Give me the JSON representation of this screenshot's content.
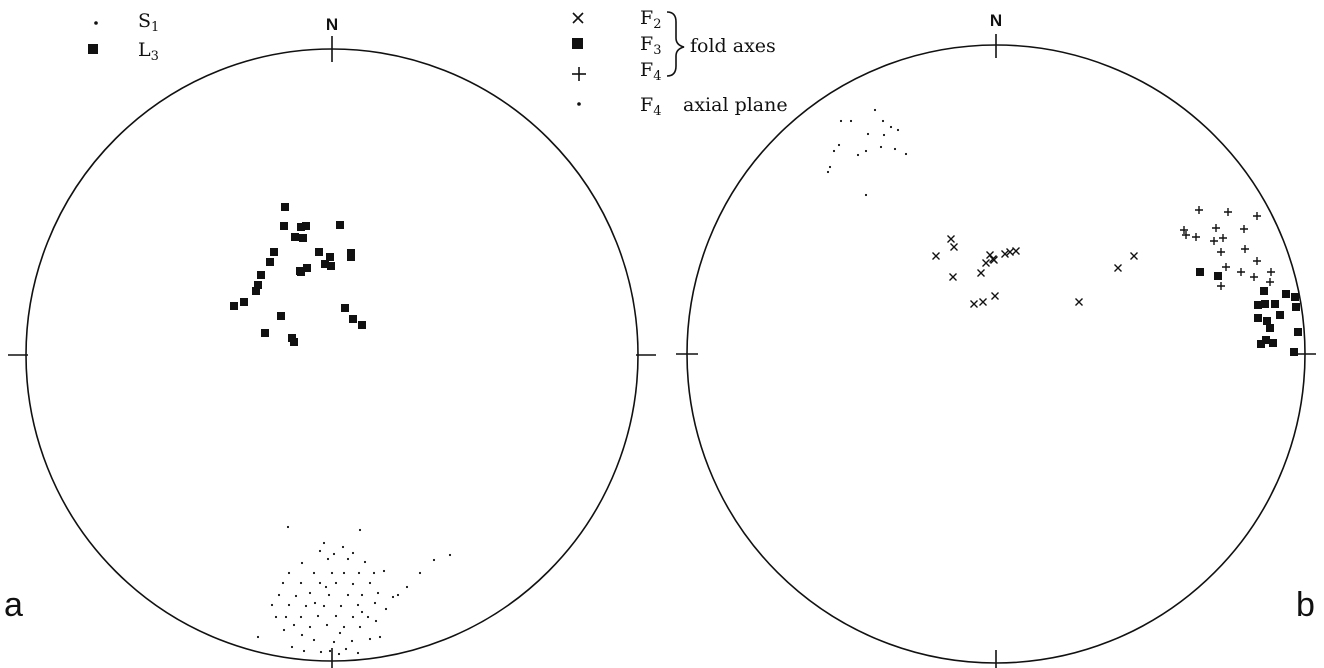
{
  "panels": [
    {
      "id": "a",
      "letter": "a",
      "north_label": "N",
      "legend": [
        {
          "symbol": "dot",
          "label": "S",
          "sub": "1"
        },
        {
          "symbol": "square",
          "label": "L",
          "sub": "3"
        }
      ],
      "points": {
        "squares": [
          [
            -47,
            -148
          ],
          [
            -48,
            -129
          ],
          [
            -31,
            -128
          ],
          [
            -26,
            -129
          ],
          [
            -37,
            -118
          ],
          [
            -29,
            -117
          ],
          [
            8,
            -130
          ],
          [
            -13,
            -103
          ],
          [
            -2,
            -98
          ],
          [
            -7,
            -91
          ],
          [
            -1,
            -89
          ],
          [
            19,
            -98
          ],
          [
            -58,
            -103
          ],
          [
            -25,
            -87
          ],
          [
            -31,
            -83
          ],
          [
            -71,
            -80
          ],
          [
            -74,
            -70
          ],
          [
            -76,
            -64
          ],
          [
            -88,
            -53
          ],
          [
            -98,
            -49
          ],
          [
            -51,
            -39
          ],
          [
            -67,
            -22
          ],
          [
            -40,
            -17
          ],
          [
            -38,
            -13
          ],
          [
            13,
            -47
          ],
          [
            21,
            -36
          ],
          [
            30,
            -30
          ],
          [
            19,
            -102
          ],
          [
            -62,
            -93
          ],
          [
            -32,
            -84
          ]
        ],
        "dots": [
          [
            -44,
            172
          ],
          [
            28,
            175
          ],
          [
            -8,
            188
          ],
          [
            11,
            192
          ],
          [
            -12,
            196
          ],
          [
            2,
            199
          ],
          [
            21,
            198
          ],
          [
            -30,
            208
          ],
          [
            -4,
            204
          ],
          [
            16,
            204
          ],
          [
            33,
            207
          ],
          [
            -43,
            218
          ],
          [
            -18,
            218
          ],
          [
            0,
            218
          ],
          [
            12,
            218
          ],
          [
            27,
            218
          ],
          [
            42,
            218
          ],
          [
            52,
            216
          ],
          [
            -49,
            228
          ],
          [
            -31,
            228
          ],
          [
            -12,
            228
          ],
          [
            4,
            228
          ],
          [
            21,
            229
          ],
          [
            38,
            228
          ],
          [
            -53,
            240
          ],
          [
            -36,
            241
          ],
          [
            -22,
            238
          ],
          [
            -3,
            240
          ],
          [
            16,
            240
          ],
          [
            30,
            240
          ],
          [
            46,
            238
          ],
          [
            -43,
            250
          ],
          [
            -26,
            251
          ],
          [
            -8,
            251
          ],
          [
            9,
            251
          ],
          [
            26,
            250
          ],
          [
            43,
            248
          ],
          [
            -46,
            262
          ],
          [
            -31,
            262
          ],
          [
            -14,
            261
          ],
          [
            4,
            261
          ],
          [
            21,
            262
          ],
          [
            36,
            262
          ],
          [
            -74,
            282
          ],
          [
            -38,
            270
          ],
          [
            -22,
            272
          ],
          [
            -5,
            270
          ],
          [
            12,
            272
          ],
          [
            28,
            272
          ],
          [
            44,
            266
          ],
          [
            -18,
            285
          ],
          [
            2,
            287
          ],
          [
            20,
            286
          ],
          [
            38,
            284
          ],
          [
            -11,
            297
          ],
          [
            7,
            299
          ],
          [
            26,
            298
          ],
          [
            -30,
            280
          ],
          [
            61,
            242
          ],
          [
            75,
            232
          ],
          [
            88,
            218
          ],
          [
            102,
            205
          ],
          [
            118,
            200
          ],
          [
            -2,
            296
          ],
          [
            -56,
            262
          ],
          [
            -28,
            296
          ],
          [
            14,
            294
          ],
          [
            -40,
            292
          ],
          [
            54,
            254
          ],
          [
            66,
            240
          ],
          [
            -6,
            232
          ],
          [
            30,
            257
          ],
          [
            8,
            278
          ],
          [
            -48,
            275
          ],
          [
            48,
            282
          ],
          [
            -17,
            248
          ],
          [
            -60,
            250
          ]
        ]
      }
    },
    {
      "id": "b",
      "letter": "b",
      "north_label": "N",
      "legend": [
        {
          "symbol": "x",
          "label": "F",
          "sub": "2"
        },
        {
          "symbol": "square",
          "label": "F",
          "sub": "3"
        },
        {
          "symbol": "plus",
          "label": "F",
          "sub": "4"
        },
        {
          "symbol": "dot",
          "label": "F",
          "sub": "4",
          "note": "axial plane"
        }
      ],
      "group_label": "fold axes",
      "points": {
        "x": [
          [
            -45,
            -115
          ],
          [
            -42,
            -107
          ],
          [
            -60,
            -98
          ],
          [
            -43,
            -77
          ],
          [
            -2,
            -94
          ],
          [
            -10,
            -91
          ],
          [
            -6,
            -99
          ],
          [
            9,
            -100
          ],
          [
            14,
            -102
          ],
          [
            20,
            -103
          ],
          [
            -15,
            -81
          ],
          [
            -22,
            -50
          ],
          [
            -13,
            -52
          ],
          [
            -1,
            -58
          ],
          [
            83,
            -52
          ],
          [
            122,
            -86
          ],
          [
            138,
            -98
          ],
          [
            -3,
            -95
          ]
        ],
        "plus": [
          [
            203,
            -144
          ],
          [
            232,
            -142
          ],
          [
            261,
            -138
          ],
          [
            188,
            -124
          ],
          [
            200,
            -117
          ],
          [
            220,
            -126
          ],
          [
            227,
            -116
          ],
          [
            248,
            -125
          ],
          [
            190,
            -119
          ],
          [
            218,
            -113
          ],
          [
            225,
            -102
          ],
          [
            249,
            -105
          ],
          [
            230,
            -87
          ],
          [
            261,
            -93
          ],
          [
            225,
            -68
          ],
          [
            245,
            -82
          ],
          [
            275,
            -82
          ],
          [
            258,
            -77
          ],
          [
            274,
            -72
          ]
        ],
        "squares": [
          [
            204,
            -82
          ],
          [
            222,
            -78
          ],
          [
            268,
            -63
          ],
          [
            262,
            -49
          ],
          [
            269,
            -50
          ],
          [
            279,
            -50
          ],
          [
            290,
            -60
          ],
          [
            299,
            -57
          ],
          [
            262,
            -36
          ],
          [
            271,
            -33
          ],
          [
            284,
            -39
          ],
          [
            300,
            -47
          ],
          [
            274,
            -26
          ],
          [
            270,
            -14
          ],
          [
            265,
            -10
          ],
          [
            277,
            -11
          ],
          [
            302,
            -22
          ],
          [
            298,
            -2
          ]
        ],
        "dots": [
          [
            -155,
            -233
          ],
          [
            -145,
            -233
          ],
          [
            -121,
            -244
          ],
          [
            -113,
            -233
          ],
          [
            -105,
            -227
          ],
          [
            -98,
            -224
          ],
          [
            -90,
            -200
          ],
          [
            -101,
            -205
          ],
          [
            -115,
            -207
          ],
          [
            -130,
            -203
          ],
          [
            -138,
            -199
          ],
          [
            -157,
            -209
          ],
          [
            -162,
            -203
          ],
          [
            -166,
            -187
          ],
          [
            -168,
            -182
          ],
          [
            -128,
            -220
          ],
          [
            -112,
            -219
          ],
          [
            -130,
            -159
          ]
        ]
      }
    }
  ],
  "colors": {
    "ink": "#111111",
    "background": "#ffffff"
  }
}
